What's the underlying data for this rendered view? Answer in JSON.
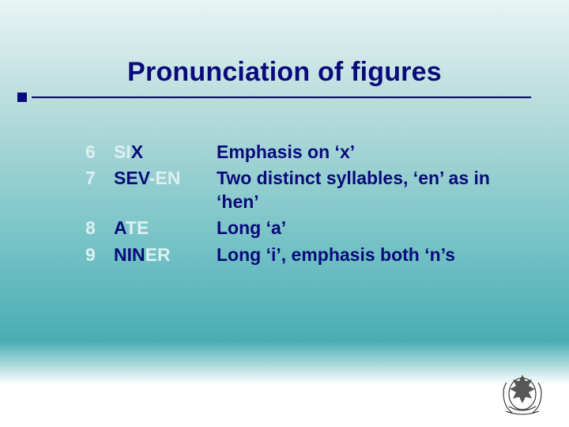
{
  "title": "Pronunciation of figures",
  "colors": {
    "title_color": "#0a0a7a",
    "emphasis_color": "#0a0a7a",
    "deemphasis_color": "#dfeff0",
    "underline_color": "#0a0a7a",
    "background_gradient": [
      "#e8f4f4",
      "#b8dcdc",
      "#6fc0c4",
      "#4aadb2",
      "#ffffff"
    ]
  },
  "typography": {
    "title_fontsize": 34,
    "body_fontsize": 23,
    "font_family": "Arial",
    "weight": "bold"
  },
  "rows": [
    {
      "num": "6",
      "phon_parts": [
        {
          "t": "SI",
          "emph": false
        },
        {
          "t": "X",
          "emph": true
        }
      ],
      "desc_parts": [
        {
          "t": "Emphasis on ‘",
          "emph": true
        },
        {
          "t": "x",
          "emph": true
        },
        {
          "t": "’",
          "emph": true
        }
      ]
    },
    {
      "num": "7",
      "phon_parts": [
        {
          "t": "SEV",
          "emph": true
        },
        {
          "t": "-EN",
          "emph": false
        }
      ],
      "desc_parts": [
        {
          "t": "Two distinct syllables, ‘",
          "emph": true
        },
        {
          "t": "en",
          "emph": true
        },
        {
          "t": "’ as in ‘",
          "emph": true
        },
        {
          "t": "hen",
          "emph": true
        },
        {
          "t": "’",
          "emph": true
        }
      ]
    },
    {
      "num": "8",
      "phon_parts": [
        {
          "t": "A",
          "emph": true
        },
        {
          "t": "TE",
          "emph": false
        }
      ],
      "desc_parts": [
        {
          "t": "Long ‘",
          "emph": true
        },
        {
          "t": "a",
          "emph": true
        },
        {
          "t": "’",
          "emph": true
        }
      ]
    },
    {
      "num": "9",
      "phon_parts": [
        {
          "t": "NIN",
          "emph": true
        },
        {
          "t": "ER",
          "emph": false
        }
      ],
      "desc_parts": [
        {
          "t": "Long ‘",
          "emph": true
        },
        {
          "t": "i",
          "emph": true
        },
        {
          "t": "’, emphasis both ‘",
          "emph": true
        },
        {
          "t": "n",
          "emph": true
        },
        {
          "t": "’s",
          "emph": true
        }
      ]
    }
  ],
  "crest_label": "military-crest-icon"
}
